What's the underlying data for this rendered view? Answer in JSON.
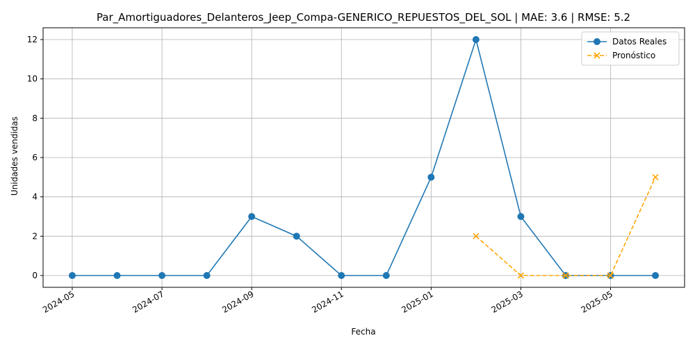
{
  "chart_data": {
    "type": "line",
    "title": "Par_Amortiguadores_Delanteros_Jeep_Compa-GENERICO_REPUESTOS_DEL_SOL | MAE: 3.6 | RMSE: 5.2",
    "xlabel": "Fecha",
    "ylabel": "Unidades vendidas",
    "ylim": [
      -0.6,
      12.6
    ],
    "yticks": [
      0,
      2,
      4,
      6,
      8,
      10,
      12
    ],
    "xticks": [
      "2024-05",
      "2024-07",
      "2024-09",
      "2024-11",
      "2025-01",
      "2025-03",
      "2025-05"
    ],
    "grid": true,
    "legend_position": "top-right",
    "series": [
      {
        "name": "Datos Reales",
        "color": "#1f77b4",
        "marker": "circle",
        "linestyle": "solid",
        "x": [
          "2024-05",
          "2024-06",
          "2024-07",
          "2024-08",
          "2024-09",
          "2024-10",
          "2024-11",
          "2024-12",
          "2025-01",
          "2025-02",
          "2025-03",
          "2025-04",
          "2025-05",
          "2025-06"
        ],
        "values": [
          0,
          0,
          0,
          0,
          3,
          2,
          0,
          0,
          5,
          12,
          3,
          0,
          0,
          0
        ]
      },
      {
        "name": "Pronóstico",
        "color": "#ffa500",
        "marker": "x",
        "linestyle": "dashed",
        "x": [
          "2025-02",
          "2025-03",
          "2025-04",
          "2025-05",
          "2025-06"
        ],
        "values": [
          2,
          0,
          0,
          0,
          5
        ]
      }
    ]
  }
}
